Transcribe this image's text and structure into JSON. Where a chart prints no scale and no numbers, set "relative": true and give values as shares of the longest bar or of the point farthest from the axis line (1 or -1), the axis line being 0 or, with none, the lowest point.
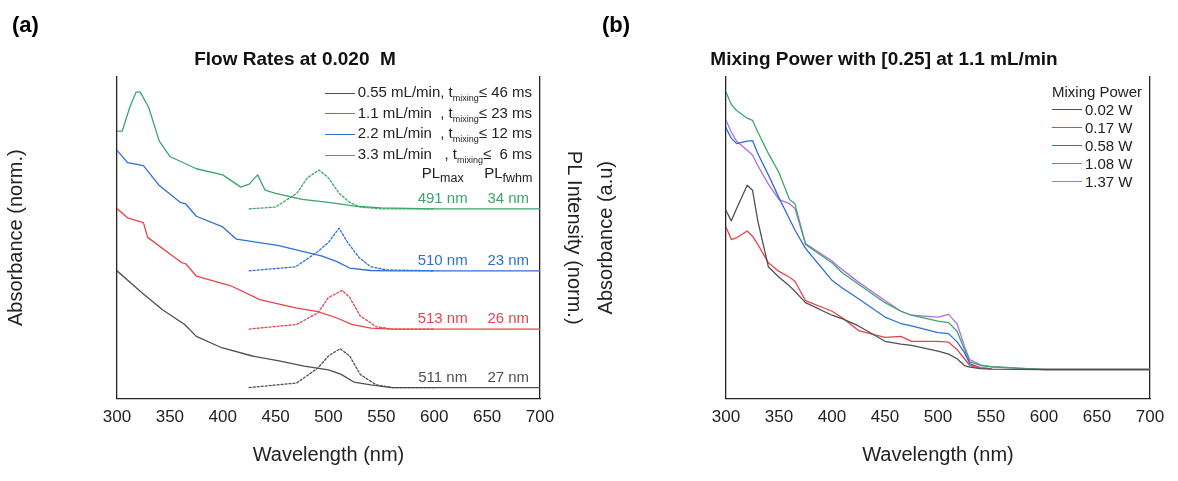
{
  "chart_data": [
    {
      "type": "line",
      "title": "Flow Rates at 0.020  M",
      "xlabel": "Wavelength (nm)",
      "ylabel": "Absorbance (norm.)",
      "y2label": "PL Intensity (norm.)",
      "relative": true,
      "xlim": [
        300,
        700
      ],
      "xticks": [
        300,
        350,
        400,
        450,
        500,
        550,
        600,
        650,
        700
      ],
      "grid": false,
      "legend": "top right",
      "marker": "none",
      "annotations": [
        "(a)",
        "PL$_{max}$",
        "PL$_{fwhm}$",
        "491 nm",
        "34 nm",
        "510 nm",
        "23 nm",
        "513 nm",
        "26 nm",
        "511 nm",
        "27 nm"
      ],
      "series": [
        {
          "name": "0.55 mL/min, t$_{mixing}$≤ 46 ms",
          "color": "#505050",
          "x": [
            300,
            323,
            343,
            364,
            375,
            399,
            428,
            452,
            477,
            500,
            512,
            524,
            540,
            560,
            600,
            650,
            700
          ],
          "values": [
            0.417,
            0.347,
            0.29,
            0.242,
            0.203,
            0.166,
            0.139,
            0.124,
            0.106,
            0.094,
            0.079,
            0.054,
            0.045,
            0.036,
            0.036,
            0.036,
            0.036
          ]
        },
        {
          "name": "1.1 mL/min  , t$_{mixing}$≤ 23 ms",
          "color": "#e8434a",
          "x": [
            300,
            310,
            325,
            329,
            361,
            365,
            375,
            407,
            435,
            469,
            490,
            508,
            522,
            540,
            560,
            600,
            650,
            700
          ],
          "values": [
            0.62,
            0.59,
            0.574,
            0.526,
            0.444,
            0.44,
            0.4,
            0.369,
            0.323,
            0.296,
            0.284,
            0.263,
            0.242,
            0.23,
            0.227,
            0.227,
            0.227,
            0.227
          ]
        },
        {
          "name": "2.2 mL/min  , t$_{mixing}$≤ 12 ms",
          "color": "#2f6fd6",
          "x": [
            300,
            310,
            325,
            340,
            360,
            365,
            375,
            400,
            413,
            452,
            494,
            508,
            520,
            540,
            560,
            600,
            650,
            700
          ],
          "values": [
            0.81,
            0.77,
            0.76,
            0.695,
            0.64,
            0.635,
            0.595,
            0.56,
            0.52,
            0.5,
            0.465,
            0.447,
            0.426,
            0.418,
            0.417,
            0.417,
            0.417,
            0.417
          ]
        },
        {
          "name": "3.3 mL/min   , t$_{mixing}$≤  6 ms",
          "color": "#3aa66a",
          "x": [
            300,
            305,
            312,
            318,
            322,
            330,
            340,
            350,
            375,
            400,
            417,
            425,
            433,
            440,
            450,
            475,
            500,
            525,
            550,
            600,
            650,
            700
          ],
          "values": [
            0.873,
            0.873,
            0.95,
            1.0,
            1.0,
            0.95,
            0.84,
            0.79,
            0.75,
            0.73,
            0.69,
            0.7,
            0.73,
            0.68,
            0.67,
            0.65,
            0.64,
            0.628,
            0.622,
            0.619,
            0.619,
            0.619
          ]
        },
        {
          "color": "#505050",
          "axis": "y2",
          "line_style": "dotted",
          "x": [
            425,
            470,
            490,
            500,
            511,
            520,
            530,
            545,
            560,
            600
          ],
          "values": [
            0.036,
            0.051,
            0.1,
            0.139,
            0.163,
            0.139,
            0.079,
            0.045,
            0.036,
            0.036
          ]
        },
        {
          "color": "#e8434a",
          "axis": "y2",
          "line_style": "dotted",
          "x": [
            425,
            470,
            490,
            500,
            513,
            520,
            530,
            545,
            560,
            600
          ],
          "values": [
            0.227,
            0.242,
            0.28,
            0.33,
            0.353,
            0.33,
            0.27,
            0.235,
            0.227,
            0.227
          ]
        },
        {
          "color": "#2f6fd6",
          "axis": "y2",
          "line_style": "dotted",
          "x": [
            425,
            469,
            490,
            500,
            510,
            518,
            529,
            540,
            555,
            600
          ],
          "values": [
            0.417,
            0.43,
            0.48,
            0.51,
            0.556,
            0.51,
            0.46,
            0.43,
            0.42,
            0.417
          ]
        },
        {
          "color": "#3aa66a",
          "axis": "y2",
          "line_style": "dotted",
          "x": [
            425,
            450,
            470,
            480,
            491,
            500,
            510,
            520,
            530,
            550,
            600
          ],
          "values": [
            0.619,
            0.625,
            0.67,
            0.72,
            0.746,
            0.72,
            0.67,
            0.64,
            0.625,
            0.619,
            0.619
          ]
        }
      ]
    },
    {
      "type": "line",
      "title": "Mixing Power with [0.25] at 1.1 mL/min",
      "xlabel": "Wavelength (nm)",
      "ylabel": "Absorbance (a.u)",
      "relative": true,
      "xlim": [
        300,
        700
      ],
      "xticks": [
        300,
        350,
        400,
        450,
        500,
        550,
        600,
        650,
        700
      ],
      "grid": false,
      "legend": "top right",
      "legend_title": "Mixing Power",
      "marker": "none",
      "annotations": [
        "(b)"
      ],
      "x": [
        300,
        305,
        310,
        320,
        325,
        330,
        340,
        350,
        360,
        365,
        375,
        400,
        410,
        425,
        450,
        465,
        475,
        500,
        510,
        518,
        525,
        530,
        540,
        550,
        600,
        650,
        700
      ],
      "series": [
        {
          "name": "0.02 W",
          "color": "#505050",
          "values": [
            0.614,
            0.58,
            0.62,
            0.696,
            0.68,
            0.58,
            0.43,
            0.396,
            0.367,
            0.35,
            0.313,
            0.272,
            0.26,
            0.237,
            0.187,
            0.178,
            0.174,
            0.155,
            0.145,
            0.13,
            0.108,
            0.103,
            0.098,
            0.096,
            0.095,
            0.095,
            0.095
          ]
        },
        {
          "name": "0.17 W",
          "color": "#e8434a",
          "values": [
            0.56,
            0.519,
            0.525,
            0.547,
            0.53,
            0.503,
            0.443,
            0.415,
            0.396,
            0.383,
            0.32,
            0.285,
            0.263,
            0.222,
            0.2,
            0.203,
            0.187,
            0.187,
            0.184,
            0.16,
            0.13,
            0.108,
            0.1,
            0.098,
            null,
            null,
            null
          ]
        },
        {
          "name": "0.58 W",
          "color": "#2f6fd6",
          "values": [
            0.883,
            0.85,
            0.832,
            0.84,
            0.842,
            0.8,
            0.73,
            0.655,
            0.585,
            0.55,
            0.49,
            0.386,
            0.36,
            0.326,
            0.266,
            0.245,
            0.237,
            0.215,
            0.212,
            0.185,
            0.15,
            0.114,
            0.1,
            0.098,
            null,
            null,
            null
          ]
        },
        {
          "name": "1.08 W",
          "color": "#3aa66a",
          "values": [
            1.0,
            0.96,
            0.94,
            0.915,
            0.908,
            0.87,
            0.8,
            0.737,
            0.649,
            0.636,
            0.503,
            0.443,
            0.41,
            0.373,
            0.313,
            0.285,
            0.272,
            0.253,
            0.248,
            0.22,
            0.16,
            0.12,
            0.108,
            0.104,
            0.095,
            0.095,
            0.095
          ]
        },
        {
          "name": "1.37 W",
          "color": "#b56ee0",
          "values": [
            0.908,
            0.87,
            0.84,
            0.81,
            0.795,
            0.76,
            0.7,
            0.649,
            0.636,
            0.62,
            0.506,
            0.449,
            0.42,
            0.38,
            0.32,
            0.285,
            0.272,
            0.266,
            0.275,
            0.244,
            0.17,
            0.127,
            0.11,
            0.104,
            0.095,
            0.095,
            0.095
          ]
        }
      ]
    }
  ]
}
